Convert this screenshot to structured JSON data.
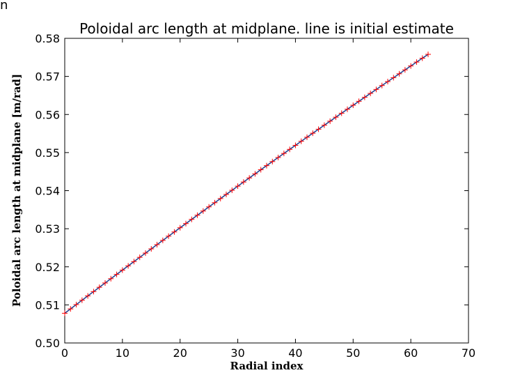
{
  "corner_glyph": "n",
  "chart_data": {
    "type": "line",
    "title": "Poloidal arc length at midplane. line is initial estimate",
    "xlabel": "Radial index",
    "ylabel": "Poloidal arc length at midplane [m/rad]",
    "xlim": [
      0,
      70
    ],
    "ylim": [
      0.5,
      0.58
    ],
    "xticks": [
      "0",
      "10",
      "20",
      "30",
      "40",
      "50",
      "60",
      "70"
    ],
    "yticks": [
      "0.50",
      "0.51",
      "0.52",
      "0.53",
      "0.54",
      "0.55",
      "0.56",
      "0.57",
      "0.58"
    ],
    "grid": false,
    "series": [
      {
        "kind": "line",
        "color": "#1f3b8c",
        "x_start": 0,
        "x_end": 63,
        "x_step": 1,
        "y_start": 0.5078,
        "y_mid": 0.5428,
        "y_end": 0.5758
      },
      {
        "kind": "markers",
        "marker": "+",
        "color": "#ff0000",
        "x_start": 0,
        "x_end": 63,
        "x_step": 1,
        "y_start": 0.5078,
        "y_mid": 0.5428,
        "y_end": 0.5758
      }
    ]
  }
}
